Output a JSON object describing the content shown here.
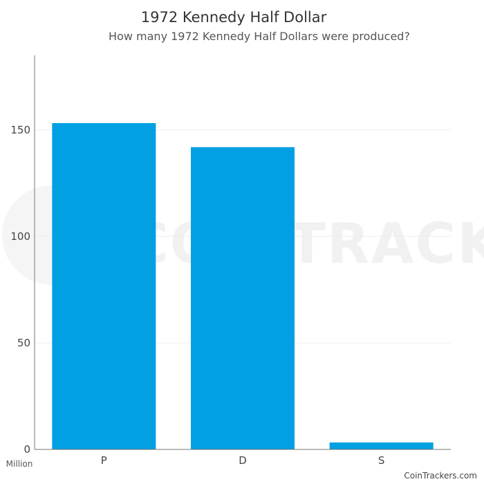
{
  "chart_data": {
    "type": "bar",
    "title": "1972 Kennedy Half Dollar",
    "subtitle": "How many 1972 Kennedy Half Dollars were produced?",
    "categories": [
      "P",
      "D",
      "S"
    ],
    "values": [
      153.18,
      141.89,
      3.27
    ],
    "ylim": [
      0,
      185
    ],
    "yticks": [
      0,
      50,
      100,
      150
    ],
    "yunit_label": "Million",
    "grid": true,
    "bar_color": "#00a0e3"
  },
  "watermark": {
    "text": "COINTRACKERS"
  },
  "credit": "CoinTrackers.com"
}
